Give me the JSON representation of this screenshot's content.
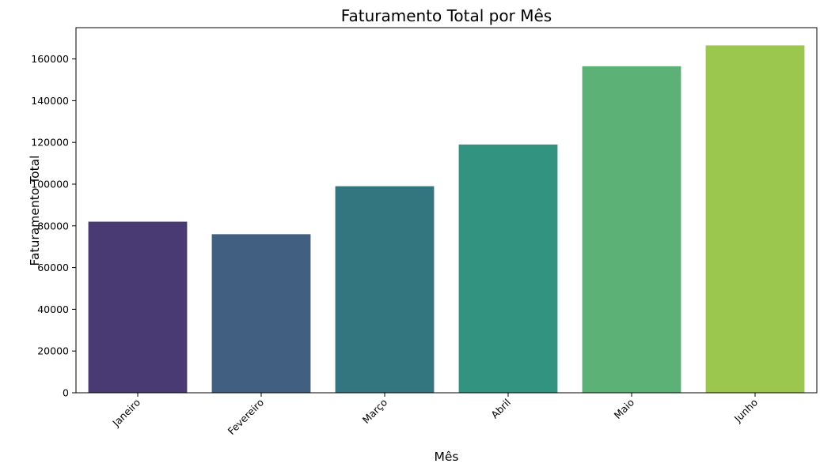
{
  "chart_data": {
    "type": "bar",
    "title": "Faturamento Total por Mês",
    "xlabel": "Mês",
    "ylabel": "Faturamento Total",
    "categories": [
      "Janeiro",
      "Fevereiro",
      "Março",
      "Abril",
      "Maio",
      "Junho"
    ],
    "values": [
      82000,
      76000,
      99000,
      119000,
      156500,
      166500
    ],
    "colors": [
      "#4a3a73",
      "#405f81",
      "#347680",
      "#319380",
      "#5cb276",
      "#9bc74f"
    ],
    "ylim": [
      0,
      175000
    ],
    "yticks": [
      0,
      20000,
      40000,
      60000,
      80000,
      100000,
      120000,
      140000,
      160000
    ],
    "ytick_labels": [
      "0",
      "20000",
      "40000",
      "60000",
      "80000",
      "100000",
      "120000",
      "140000",
      "160000"
    ],
    "grid": false,
    "legend": "none",
    "xtick_rotation": 45
  }
}
